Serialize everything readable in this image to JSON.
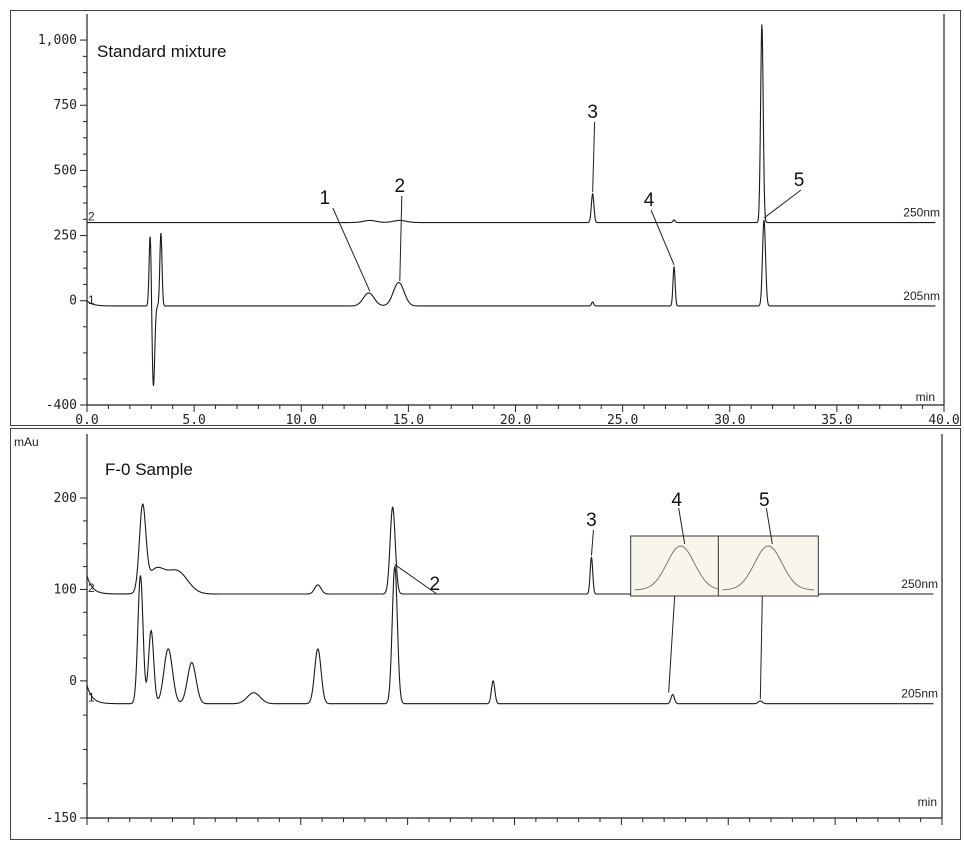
{
  "chart_data": [
    {
      "type": "line",
      "title": "Standard mixture",
      "xlabel": "min",
      "ylabel": "",
      "xlim": [
        0,
        40
      ],
      "ylim": [
        -400,
        1100
      ],
      "x_ticks": [
        0,
        5,
        10,
        15,
        20,
        25,
        30,
        35,
        40
      ],
      "x_tick_labels": [
        "0.0",
        "5.0",
        "10.0",
        "15.0",
        "20.0",
        "25.0",
        "30.0",
        "35.0",
        "40.0"
      ],
      "y_ticks": [
        -400,
        0,
        250,
        500,
        750,
        1000
      ],
      "y_tick_labels": [
        "-400",
        "0",
        "250",
        "500",
        "750",
        "1,000"
      ],
      "series": [
        {
          "name": "250nm",
          "channel": "2",
          "baseline": 300,
          "peaks": [
            {
              "x": 13.2,
              "height": 8,
              "width": 0.3
            },
            {
              "x": 14.6,
              "height": 8,
              "width": 0.3
            },
            {
              "x": 23.6,
              "height": 110,
              "width": 0.06
            },
            {
              "x": 27.4,
              "height": 10,
              "width": 0.05
            },
            {
              "x": 31.5,
              "height": 760,
              "width": 0.06
            }
          ]
        },
        {
          "name": "205nm",
          "channel": "1",
          "baseline": -20,
          "peaks": [
            {
              "x": 2.95,
              "height": 280,
              "width": 0.05
            },
            {
              "x": 3.1,
              "height": -310,
              "width": 0.06
            },
            {
              "x": 3.45,
              "height": 280,
              "width": 0.05
            },
            {
              "x": 13.15,
              "height": 50,
              "width": 0.25
            },
            {
              "x": 14.55,
              "height": 90,
              "width": 0.25
            },
            {
              "x": 23.6,
              "height": 15,
              "width": 0.05
            },
            {
              "x": 27.4,
              "height": 150,
              "width": 0.05
            },
            {
              "x": 31.6,
              "height": 330,
              "width": 0.07
            }
          ]
        }
      ],
      "annotations": [
        {
          "label": "1",
          "x": 13.2,
          "target_series": "205nm"
        },
        {
          "label": "2",
          "x": 14.6,
          "target_series": "205nm"
        },
        {
          "label": "3",
          "x": 23.6,
          "target_series": "250nm"
        },
        {
          "label": "4",
          "x": 27.4,
          "target_series": "205nm"
        },
        {
          "label": "5",
          "x": 31.6,
          "target_series": "205nm"
        }
      ]
    },
    {
      "type": "line",
      "title": "F-0 Sample",
      "xlabel": "min",
      "ylabel": "mAu",
      "xlim": [
        0,
        40
      ],
      "ylim": [
        -150,
        270
      ],
      "y_ticks": [
        -150,
        0,
        100,
        200
      ],
      "y_tick_labels": [
        "-150",
        "0",
        "100",
        "200"
      ],
      "series": [
        {
          "name": "250nm",
          "channel": "2",
          "baseline": 95,
          "peaks": [
            {
              "x": 2.6,
              "height": 90,
              "width": 0.15
            },
            {
              "x": 3.2,
              "height": 25,
              "width": 0.4
            },
            {
              "x": 4.2,
              "height": 25,
              "width": 0.5
            },
            {
              "x": 10.8,
              "height": 10,
              "width": 0.15
            },
            {
              "x": 14.3,
              "height": 95,
              "width": 0.12
            },
            {
              "x": 23.6,
              "height": 40,
              "width": 0.06
            },
            {
              "x": 27.4,
              "height": 5,
              "width": 0.08
            },
            {
              "x": 31.5,
              "height": 5,
              "width": 0.1
            }
          ]
        },
        {
          "name": "205nm",
          "channel": "1",
          "baseline": -25,
          "peaks": [
            {
              "x": 2.5,
              "height": 140,
              "width": 0.12
            },
            {
              "x": 3.0,
              "height": 80,
              "width": 0.12
            },
            {
              "x": 3.8,
              "height": 60,
              "width": 0.2
            },
            {
              "x": 4.9,
              "height": 45,
              "width": 0.2
            },
            {
              "x": 7.8,
              "height": 12,
              "width": 0.3
            },
            {
              "x": 10.8,
              "height": 60,
              "width": 0.15
            },
            {
              "x": 14.4,
              "height": 150,
              "width": 0.12
            },
            {
              "x": 19.0,
              "height": 25,
              "width": 0.08
            },
            {
              "x": 27.4,
              "height": 10,
              "width": 0.08
            },
            {
              "x": 31.5,
              "height": 3,
              "width": 0.1
            }
          ]
        }
      ],
      "annotations": [
        {
          "label": "2",
          "x": 14.4,
          "target_series": "205nm"
        },
        {
          "label": "3",
          "x": 23.6,
          "target_series": "250nm"
        },
        {
          "label": "4",
          "x": 27.4,
          "target_series": "205nm",
          "inset": true
        },
        {
          "label": "5",
          "x": 31.5,
          "target_series": "205nm",
          "inset": true
        }
      ]
    }
  ]
}
